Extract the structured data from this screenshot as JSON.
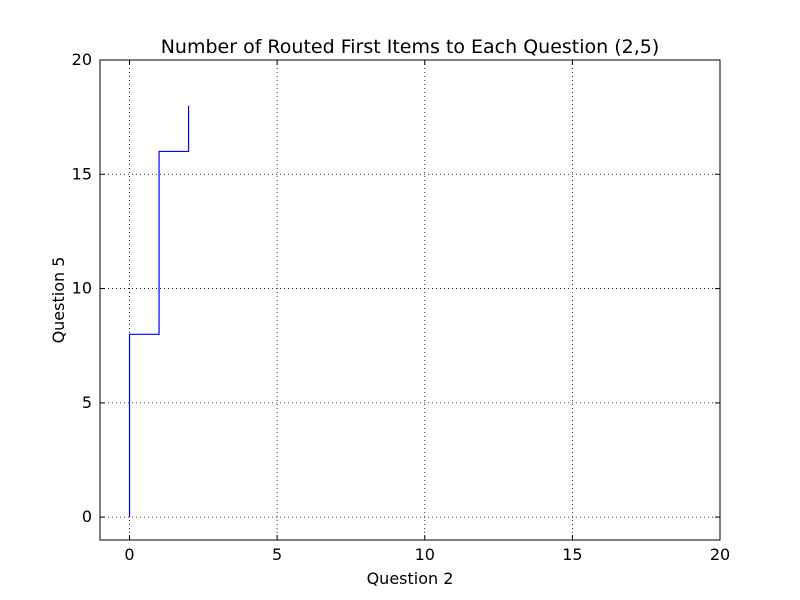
{
  "chart_data": {
    "type": "line",
    "title": "Number of Routed First Items to Each Question (2,5)",
    "xlabel": "Question 2",
    "ylabel": "Question 5",
    "xlim": [
      -1,
      20
    ],
    "ylim": [
      -1,
      20
    ],
    "xticks": [
      0,
      5,
      10,
      15,
      20
    ],
    "yticks": [
      0,
      5,
      10,
      15,
      20
    ],
    "grid": true,
    "grid_style": "dotted",
    "series": [
      {
        "color": "#0000ff",
        "x": [
          0,
          0,
          1,
          1,
          2,
          2
        ],
        "y": [
          0,
          8,
          8,
          16,
          16,
          18
        ]
      }
    ]
  }
}
